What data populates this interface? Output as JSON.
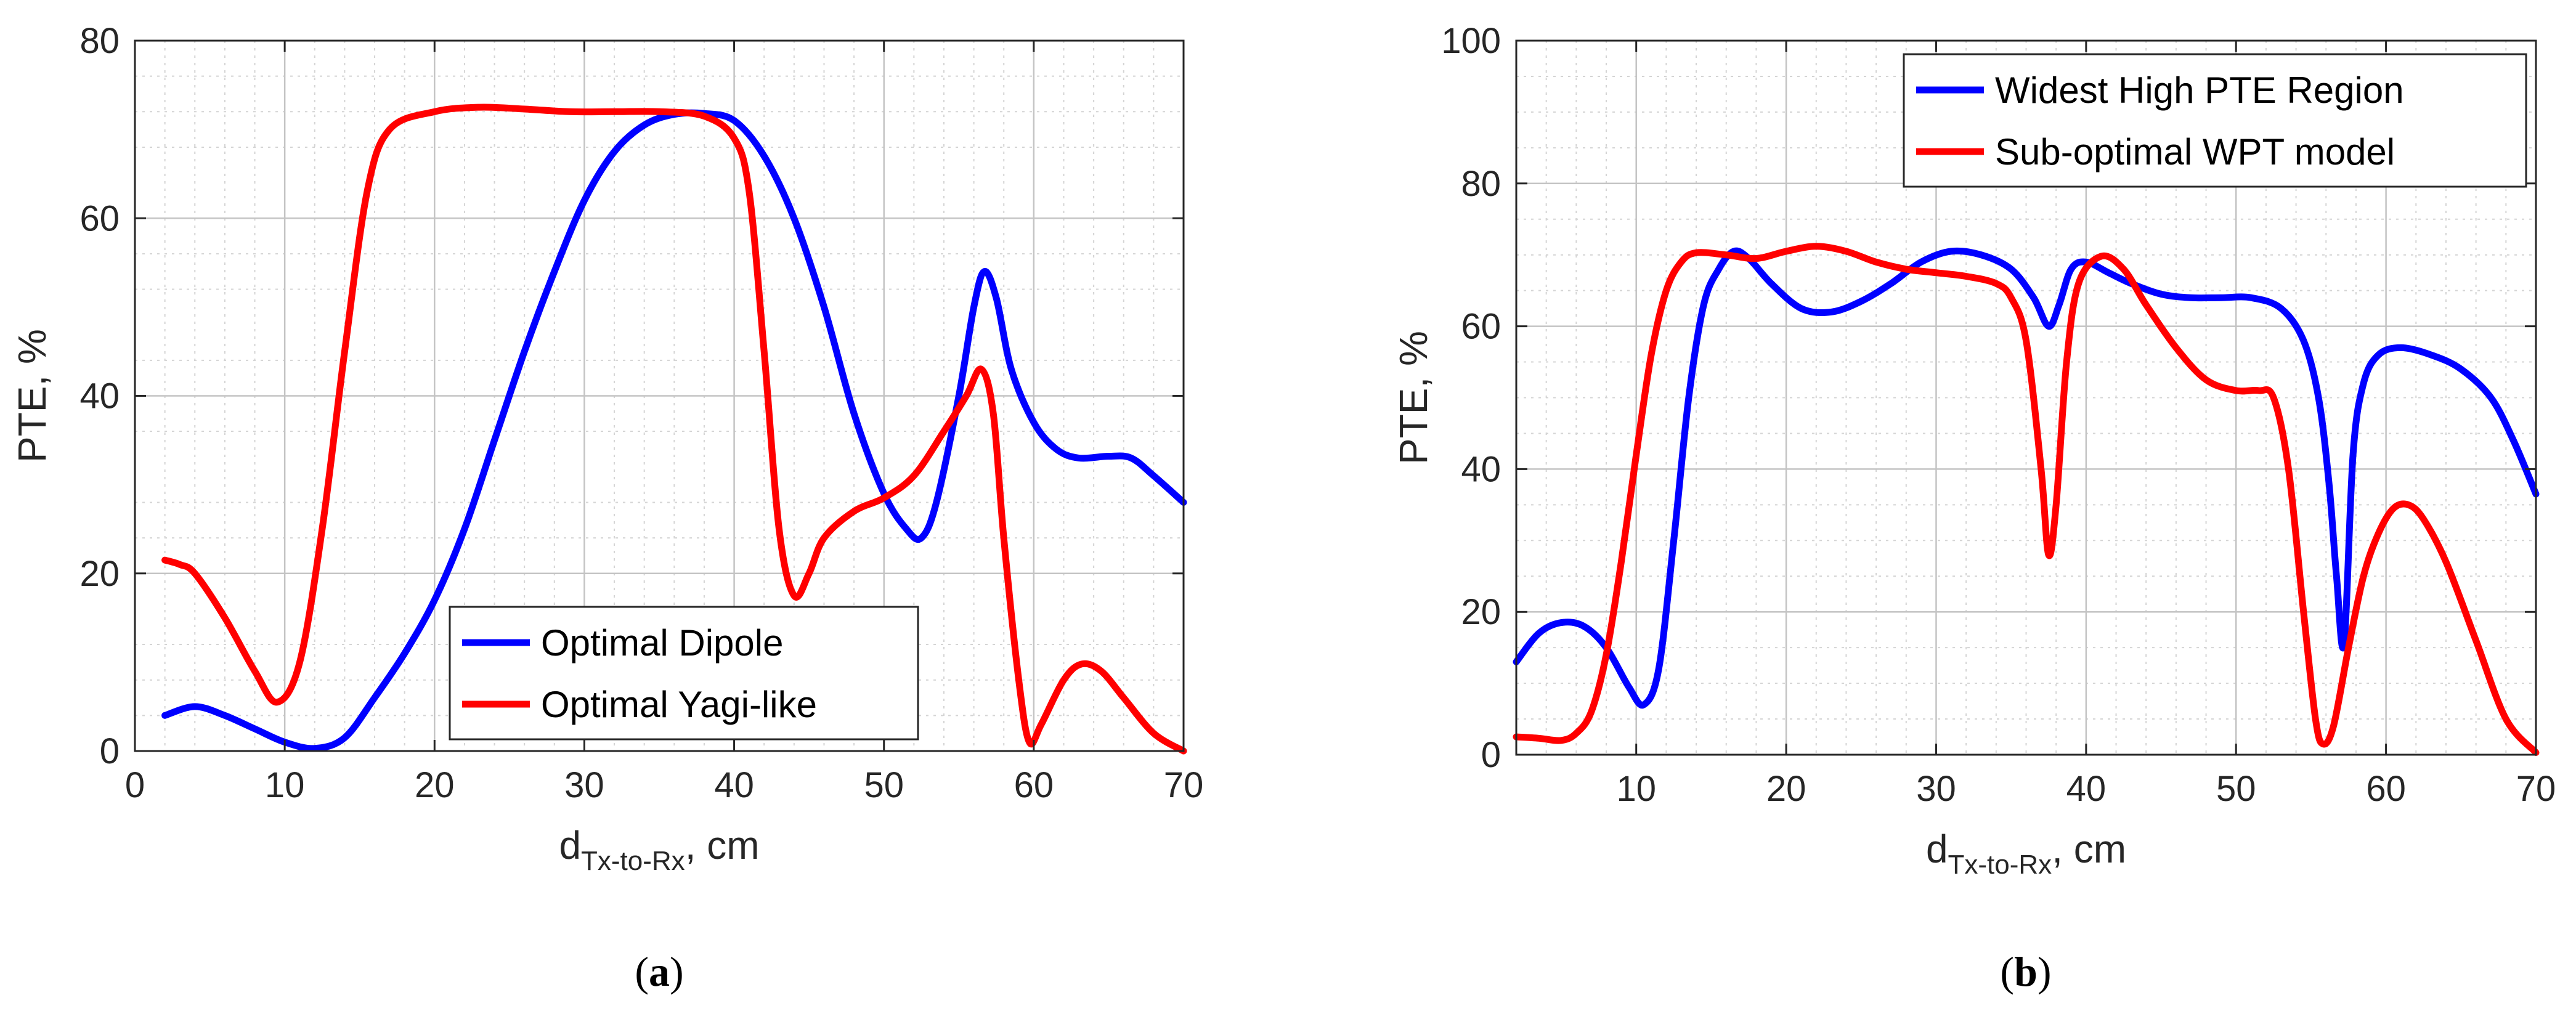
{
  "chart_data": [
    {
      "panel": "a",
      "caption": {
        "open": "(",
        "letter": "a",
        "close": ")"
      },
      "type": "line",
      "ylabel": "PTE, %",
      "xlabel": {
        "main": "d",
        "sub": "Tx-to-Rx",
        "suffix": ", cm"
      },
      "xlim": [
        0,
        70
      ],
      "ylim": [
        0,
        80
      ],
      "xticks": [
        0,
        10,
        20,
        30,
        40,
        50,
        60,
        70
      ],
      "yticks": [
        0,
        20,
        40,
        60,
        80
      ],
      "grid": true,
      "minor_grid": true,
      "legend_position": "bottom-center",
      "series": [
        {
          "name": "Optimal Dipole",
          "color": "#0000ff",
          "points": [
            [
              2,
              4
            ],
            [
              4,
              5
            ],
            [
              6,
              4
            ],
            [
              8,
              2.5
            ],
            [
              10,
              1
            ],
            [
              12,
              0.3
            ],
            [
              14,
              1.5
            ],
            [
              16,
              6
            ],
            [
              18,
              11
            ],
            [
              20,
              17
            ],
            [
              22,
              25
            ],
            [
              24,
              35
            ],
            [
              26,
              45
            ],
            [
              28,
              54
            ],
            [
              30,
              62
            ],
            [
              32,
              67.5
            ],
            [
              34,
              70.5
            ],
            [
              36,
              71.7
            ],
            [
              38,
              71.8
            ],
            [
              40,
              71
            ],
            [
              42,
              67
            ],
            [
              44,
              60
            ],
            [
              46,
              50
            ],
            [
              48,
              38
            ],
            [
              50,
              29
            ],
            [
              51.5,
              25
            ],
            [
              52.5,
              24
            ],
            [
              53.5,
              28
            ],
            [
              55,
              40
            ],
            [
              56,
              50
            ],
            [
              56.7,
              54
            ],
            [
              57.5,
              51
            ],
            [
              58.5,
              43
            ],
            [
              60,
              37
            ],
            [
              61.5,
              34
            ],
            [
              63,
              33
            ],
            [
              65,
              33.2
            ],
            [
              66.5,
              33
            ],
            [
              68,
              31
            ],
            [
              70,
              28
            ]
          ]
        },
        {
          "name": "Optimal Yagi-like",
          "color": "#ff0000",
          "points": [
            [
              2,
              21.5
            ],
            [
              3,
              21
            ],
            [
              4,
              20
            ],
            [
              6,
              15
            ],
            [
              8,
              9
            ],
            [
              9.5,
              5.5
            ],
            [
              11,
              10
            ],
            [
              12.5,
              25
            ],
            [
              14,
              45
            ],
            [
              15.5,
              63
            ],
            [
              17,
              70
            ],
            [
              20,
              72
            ],
            [
              23,
              72.5
            ],
            [
              26,
              72.3
            ],
            [
              29,
              72
            ],
            [
              32,
              72
            ],
            [
              35,
              72
            ],
            [
              38,
              71.5
            ],
            [
              40,
              69
            ],
            [
              41,
              63
            ],
            [
              42,
              45
            ],
            [
              43,
              25
            ],
            [
              44,
              17.5
            ],
            [
              45,
              20
            ],
            [
              46,
              24
            ],
            [
              48,
              27
            ],
            [
              50,
              28.5
            ],
            [
              52,
              31
            ],
            [
              54,
              36
            ],
            [
              55.5,
              40
            ],
            [
              56.5,
              43
            ],
            [
              57.3,
              38
            ],
            [
              58,
              24
            ],
            [
              59,
              8
            ],
            [
              59.7,
              1
            ],
            [
              60.5,
              3
            ],
            [
              62,
              8
            ],
            [
              63.2,
              9.8
            ],
            [
              64.5,
              9
            ],
            [
              66,
              6
            ],
            [
              68,
              2
            ],
            [
              70,
              0
            ]
          ]
        }
      ]
    },
    {
      "panel": "b",
      "caption": {
        "open": "(",
        "letter": "b",
        "close": ")"
      },
      "type": "line",
      "ylabel": "PTE, %",
      "xlabel": {
        "main": "d",
        "sub": "Tx-to-Rx",
        "suffix": ", cm"
      },
      "xlim": [
        2,
        70
      ],
      "ylim": [
        0,
        100
      ],
      "xticks": [
        10,
        20,
        30,
        40,
        50,
        60,
        70
      ],
      "yticks": [
        0,
        20,
        40,
        60,
        80,
        100
      ],
      "grid": true,
      "minor_grid": true,
      "legend_position": "top-right",
      "series": [
        {
          "name": "Widest High PTE Region",
          "color": "#0000ff",
          "points": [
            [
              2,
              13
            ],
            [
              3.5,
              17
            ],
            [
              5,
              18.5
            ],
            [
              6.5,
              18
            ],
            [
              8,
              15
            ],
            [
              9.5,
              9.5
            ],
            [
              10.5,
              7
            ],
            [
              11.5,
              12
            ],
            [
              12.5,
              30
            ],
            [
              13.5,
              50
            ],
            [
              14.5,
              63
            ],
            [
              15.5,
              68
            ],
            [
              16.5,
              70.5
            ],
            [
              17.5,
              69.5
            ],
            [
              19,
              66
            ],
            [
              21,
              62.5
            ],
            [
              23,
              62
            ],
            [
              25,
              63.5
            ],
            [
              27,
              66
            ],
            [
              29,
              69
            ],
            [
              31,
              70.5
            ],
            [
              33,
              70
            ],
            [
              35,
              68
            ],
            [
              36.5,
              64
            ],
            [
              37.5,
              60
            ],
            [
              38.2,
              63
            ],
            [
              39,
              68
            ],
            [
              40,
              69
            ],
            [
              41.5,
              67.5
            ],
            [
              43,
              66
            ],
            [
              45,
              64.5
            ],
            [
              47,
              64
            ],
            [
              49,
              64
            ],
            [
              51,
              64
            ],
            [
              53,
              62.5
            ],
            [
              54.5,
              58
            ],
            [
              55.5,
              50
            ],
            [
              56.2,
              38
            ],
            [
              56.7,
              25
            ],
            [
              57.2,
              15.5
            ],
            [
              57.8,
              42
            ],
            [
              58.5,
              52
            ],
            [
              59.5,
              56
            ],
            [
              61,
              57
            ],
            [
              63,
              56
            ],
            [
              65,
              54
            ],
            [
              67,
              50
            ],
            [
              68.5,
              44
            ],
            [
              70,
              36.5
            ]
          ]
        },
        {
          "name": "Sub-optimal WPT model",
          "color": "#ff0000",
          "points": [
            [
              2,
              2.5
            ],
            [
              3.5,
              2.3
            ],
            [
              5,
              2
            ],
            [
              6,
              3
            ],
            [
              7,
              6
            ],
            [
              8,
              14
            ],
            [
              9,
              27
            ],
            [
              10,
              42
            ],
            [
              11,
              56
            ],
            [
              12,
              65
            ],
            [
              13,
              69
            ],
            [
              14,
              70.3
            ],
            [
              16,
              70
            ],
            [
              18,
              69.5
            ],
            [
              20,
              70.5
            ],
            [
              22,
              71.2
            ],
            [
              24,
              70.5
            ],
            [
              26,
              69
            ],
            [
              28,
              68
            ],
            [
              30,
              67.5
            ],
            [
              32,
              67
            ],
            [
              34,
              66
            ],
            [
              35,
              64
            ],
            [
              36,
              58
            ],
            [
              37,
              40
            ],
            [
              37.5,
              28
            ],
            [
              38,
              35
            ],
            [
              38.7,
              55
            ],
            [
              39.5,
              66
            ],
            [
              41,
              69.8
            ],
            [
              42.5,
              68
            ],
            [
              44,
              63
            ],
            [
              46,
              57
            ],
            [
              48,
              52.5
            ],
            [
              50,
              51
            ],
            [
              51.5,
              51
            ],
            [
              52.5,
              50
            ],
            [
              53.5,
              40
            ],
            [
              54.5,
              20
            ],
            [
              55.3,
              5
            ],
            [
              55.8,
              1.5
            ],
            [
              56.5,
              4
            ],
            [
              57.5,
              15
            ],
            [
              58.5,
              25
            ],
            [
              59.5,
              31
            ],
            [
              60.5,
              34.5
            ],
            [
              61.5,
              35
            ],
            [
              62.5,
              33
            ],
            [
              64,
              27
            ],
            [
              66,
              16
            ],
            [
              68,
              5
            ],
            [
              70,
              0.3
            ]
          ]
        }
      ]
    }
  ]
}
